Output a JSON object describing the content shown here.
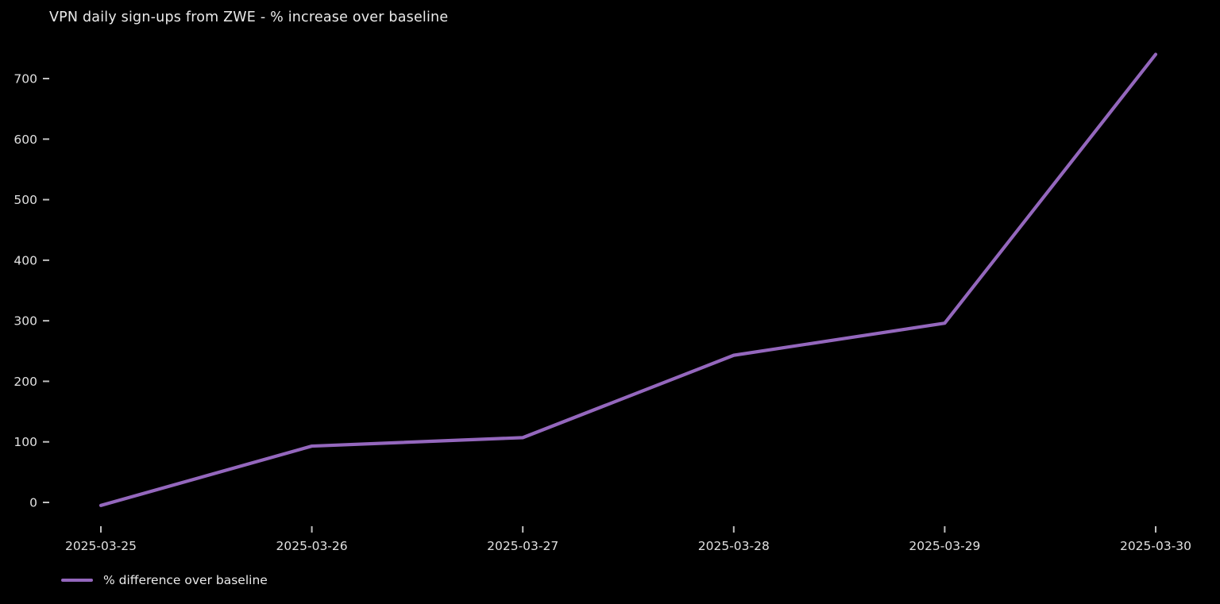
{
  "chart_data": {
    "type": "line",
    "title": "VPN daily sign-ups from ZWE - % increase over baseline",
    "categories": [
      "2025-03-25",
      "2025-03-26",
      "2025-03-27",
      "2025-03-28",
      "2025-03-29",
      "2025-03-30"
    ],
    "series": [
      {
        "name": "% difference over baseline",
        "values": [
          -5,
          93,
          107,
          243,
          296,
          740
        ]
      }
    ],
    "yticks": [
      0,
      100,
      200,
      300,
      400,
      500,
      600,
      700
    ],
    "ylim": [
      -35,
      765
    ],
    "xlabel": "",
    "ylabel": "",
    "grid": false,
    "legend_position": "lower-left",
    "line_color": "#9467bd",
    "background_color": "#000000",
    "text_color": "#e0e0e0"
  }
}
